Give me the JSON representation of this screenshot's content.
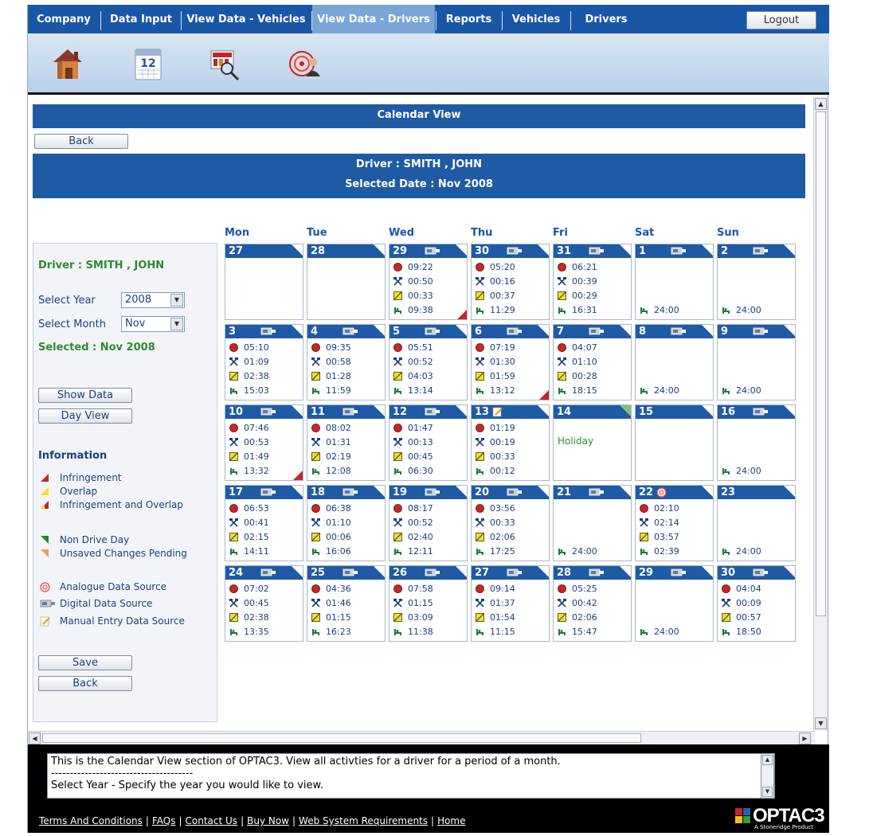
{
  "nav": {
    "tabs": [
      "Company",
      "Data Input",
      "View Data - Vehicles",
      "View Data - Drivers",
      "Reports",
      "Vehicles",
      "Drivers"
    ],
    "active_tab": "View Data - Drivers",
    "logout_label": "Logout"
  },
  "iconbar": {
    "icons": [
      "home-icon",
      "calendar-icon",
      "search-report-icon",
      "driver-analogue-icon"
    ],
    "calendar_number": "12"
  },
  "page": {
    "title": "Calendar View",
    "back_label": "Back",
    "driver_line": "Driver : SMITH , JOHN",
    "selected_date_line": "Selected Date : Nov 2008"
  },
  "left_panel": {
    "driver": "Driver : SMITH , JOHN",
    "select_year_label": "Select Year",
    "year_value": "2008",
    "select_month_label": "Select Month",
    "month_value": "Nov",
    "selected": "Selected : Nov 2008",
    "show_data_label": "Show Data",
    "day_view_label": "Day View",
    "information_title": "Information",
    "legend": [
      {
        "label": "Infringement",
        "icon": "infringement-icon",
        "color": "#c2272d"
      },
      {
        "label": "Overlap",
        "icon": "overlap-icon",
        "color": "#f2e21b"
      },
      {
        "label": "Infringement and Overlap",
        "icon": "infringement-overlap-icon",
        "color": "#c2272d"
      },
      {
        "label": "Non Drive Day",
        "icon": "non-drive-day-icon",
        "color": "#1f8a2f"
      },
      {
        "label": "Unsaved Changes Pending",
        "icon": "unsaved-changes-icon",
        "color": "#f09a5a"
      },
      {
        "label": "Analogue Data Source",
        "icon": "analogue-source-icon",
        "color": "#d9534f"
      },
      {
        "label": "Digital Data Source",
        "icon": "digital-source-icon",
        "color": "#6b7a8f"
      },
      {
        "label": "Manual Entry Data Source",
        "icon": "manual-entry-icon",
        "color": "#e0a020"
      }
    ],
    "save_label": "Save",
    "back_label": "Back"
  },
  "calendar": {
    "weekdays": [
      "Mon",
      "Tue",
      "Wed",
      "Thu",
      "Fri",
      "Sat",
      "Sun"
    ],
    "weeks": [
      [
        {
          "day": "27",
          "source": "",
          "rows": []
        },
        {
          "day": "28",
          "source": "",
          "rows": []
        },
        {
          "day": "29",
          "source": "digital",
          "rows": [
            "09:22",
            "00:50",
            "00:33",
            "09:38"
          ],
          "infringement": true
        },
        {
          "day": "30",
          "source": "digital",
          "rows": [
            "05:20",
            "00:16",
            "00:37",
            "11:29"
          ]
        },
        {
          "day": "31",
          "source": "digital",
          "rows": [
            "06:21",
            "00:39",
            "00:29",
            "16:31"
          ]
        },
        {
          "day": "1",
          "source": "digital",
          "rest": "24:00"
        },
        {
          "day": "2",
          "source": "digital",
          "rest": "24:00"
        }
      ],
      [
        {
          "day": "3",
          "source": "digital",
          "rows": [
            "05:10",
            "01:09",
            "02:38",
            "15:03"
          ]
        },
        {
          "day": "4",
          "source": "digital",
          "rows": [
            "09:35",
            "00:58",
            "01:28",
            "11:59"
          ]
        },
        {
          "day": "5",
          "source": "digital",
          "rows": [
            "05:51",
            "00:52",
            "04:03",
            "13:14"
          ]
        },
        {
          "day": "6",
          "source": "digital",
          "rows": [
            "07:19",
            "01:30",
            "01:59",
            "13:12"
          ],
          "infringement": true
        },
        {
          "day": "7",
          "source": "digital",
          "rows": [
            "04:07",
            "01:10",
            "00:28",
            "18:15"
          ]
        },
        {
          "day": "8",
          "source": "digital",
          "rest": "24:00"
        },
        {
          "day": "9",
          "source": "digital",
          "rest": "24:00"
        }
      ],
      [
        {
          "day": "10",
          "source": "digital",
          "rows": [
            "07:46",
            "00:53",
            "01:49",
            "13:32"
          ],
          "infringement": true
        },
        {
          "day": "11",
          "source": "digital",
          "rows": [
            "08:02",
            "01:31",
            "02:19",
            "12:08"
          ]
        },
        {
          "day": "12",
          "source": "digital",
          "rows": [
            "01:47",
            "00:13",
            "00:45",
            "06:30"
          ]
        },
        {
          "day": "13",
          "source": "manual",
          "rows": [
            "01:19",
            "00:19",
            "00:33",
            "00:12"
          ]
        },
        {
          "day": "14",
          "source": "",
          "holiday": "Holiday",
          "non_drive": true
        },
        {
          "day": "15",
          "source": ""
        },
        {
          "day": "16",
          "source": "digital",
          "rest": "24:00"
        }
      ],
      [
        {
          "day": "17",
          "source": "digital",
          "rows": [
            "06:53",
            "00:41",
            "02:15",
            "14:11"
          ]
        },
        {
          "day": "18",
          "source": "digital",
          "rows": [
            "06:38",
            "01:10",
            "00:06",
            "16:06"
          ]
        },
        {
          "day": "19",
          "source": "digital",
          "rows": [
            "08:17",
            "00:52",
            "02:40",
            "12:11"
          ]
        },
        {
          "day": "20",
          "source": "digital",
          "rows": [
            "03:56",
            "00:33",
            "02:06",
            "17:25"
          ]
        },
        {
          "day": "21",
          "source": "digital",
          "rest": "24:00"
        },
        {
          "day": "22",
          "source": "analogue",
          "rows": [
            "02:10",
            "02:14",
            "03:57",
            "02:39"
          ]
        },
        {
          "day": "23",
          "source": "",
          "rest": "24:00"
        }
      ],
      [
        {
          "day": "24",
          "source": "digital",
          "rows": [
            "07:02",
            "00:45",
            "02:38",
            "13:35"
          ]
        },
        {
          "day": "25",
          "source": "digital",
          "rows": [
            "04:36",
            "01:46",
            "01:15",
            "16:23"
          ]
        },
        {
          "day": "26",
          "source": "digital",
          "rows": [
            "07:58",
            "01:15",
            "03:09",
            "11:38"
          ]
        },
        {
          "day": "27",
          "source": "digital",
          "rows": [
            "09:14",
            "01:37",
            "01:54",
            "11:15"
          ]
        },
        {
          "day": "28",
          "source": "digital",
          "rows": [
            "05:25",
            "00:42",
            "02:06",
            "15:47"
          ]
        },
        {
          "day": "29",
          "source": "digital",
          "rest": "24:00"
        },
        {
          "day": "30",
          "source": "digital",
          "rows": [
            "04:04",
            "00:09",
            "00:57",
            "18:50"
          ]
        }
      ]
    ]
  },
  "info": {
    "line1": "This is the Calendar View section of OPTAC3. View all activties for a driver for a period of a month.",
    "line2": "--------------------------------------",
    "line3": "Select Year - Specify the year you would like to view."
  },
  "footer": {
    "links": [
      "Terms And Conditions",
      "FAQs",
      "Contact Us",
      "Buy Now",
      "Web System Requirements",
      "Home"
    ]
  },
  "logo": {
    "wordmark": "OPTAC3",
    "tagline": "A Stoneridge Product"
  },
  "colors": {
    "nav_blue": "#1a56a6",
    "header_blue": "#1f5aa5",
    "drive_red": "#c62828",
    "other_work_yellow": "#f2e21b",
    "rest_green": "#1f7a3a",
    "holiday_green": "#2f8a2f"
  }
}
